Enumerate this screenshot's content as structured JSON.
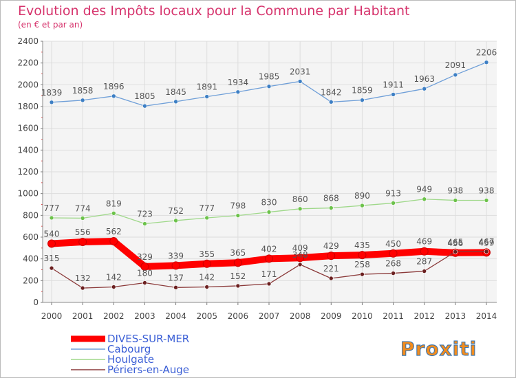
{
  "chart_data": {
    "type": "line",
    "title": "Evolution des Impôts locaux pour la Commune par Habitant",
    "subtitle": "(en € et par an)",
    "xlabel": "",
    "ylabel": "",
    "x": [
      "2000",
      "2001",
      "2002",
      "2003",
      "2004",
      "2005",
      "2006",
      "2007",
      "2008",
      "2009",
      "2010",
      "2011",
      "2012",
      "2013",
      "2014"
    ],
    "yticks": [
      "0",
      "200",
      "400",
      "600",
      "800",
      "1000",
      "1200",
      "1400",
      "1600",
      "1800",
      "2000",
      "2200",
      "2400"
    ],
    "ylim": [
      0,
      2400
    ],
    "grid": true,
    "legend_position": "bottom-left",
    "series": [
      {
        "name": "Cabourg",
        "color": "#6f9fd8",
        "point_color": "#3d7fc4",
        "width": "thin",
        "values": [
          1839,
          1858,
          1896,
          1805,
          1845,
          1891,
          1934,
          1985,
          2031,
          1842,
          1859,
          1911,
          1963,
          2091,
          2206
        ],
        "labels": [
          "1839",
          "1858",
          "1896",
          "1805",
          "1845",
          "1891",
          "1934",
          "1985",
          "2031",
          "1842",
          "1859",
          "1911",
          "1963",
          "2091",
          "2206"
        ]
      },
      {
        "name": "Houlgate",
        "color": "#9fd88a",
        "point_color": "#6cc24a",
        "width": "thin",
        "values": [
          777,
          774,
          819,
          723,
          752,
          777,
          798,
          830,
          860,
          868,
          890,
          913,
          949,
          938,
          938
        ],
        "labels": [
          "777",
          "774",
          "819",
          "723",
          "752",
          "777",
          "798",
          "830",
          "860",
          "868",
          "890",
          "913",
          "949",
          "938",
          "938"
        ]
      },
      {
        "name": "DIVES-SUR-MER",
        "color": "#ff0000",
        "point_color": "#ff0000",
        "width": "thick",
        "values": [
          540,
          556,
          562,
          329,
          339,
          355,
          365,
          402,
          409,
          429,
          435,
          450,
          469,
          456,
          459
        ],
        "labels": [
          "540",
          "556",
          "562",
          "329",
          "339",
          "355",
          "365",
          "402",
          "409",
          "429",
          "435",
          "450",
          "469",
          "456",
          "459"
        ]
      },
      {
        "name": "Périers-en-Auge",
        "color": "#8b3a3a",
        "point_color": "#6b2020",
        "width": "thin",
        "values": [
          315,
          132,
          142,
          180,
          137,
          142,
          152,
          171,
          348,
          221,
          258,
          268,
          287,
          465,
          467
        ],
        "labels": [
          "315",
          "132",
          "142",
          "180",
          "137",
          "142",
          "152",
          "171",
          "348",
          "221",
          "258",
          "268",
          "287",
          "465",
          "467"
        ]
      }
    ],
    "legend": [
      "DIVES-SUR-MER",
      "Cabourg",
      "Houlgate",
      "Périers-en-Auge"
    ],
    "legend_colors": [
      "#ff0000",
      "#6f9fd8",
      "#9fd88a",
      "#8b3a3a"
    ],
    "logo": "Proxiti"
  }
}
